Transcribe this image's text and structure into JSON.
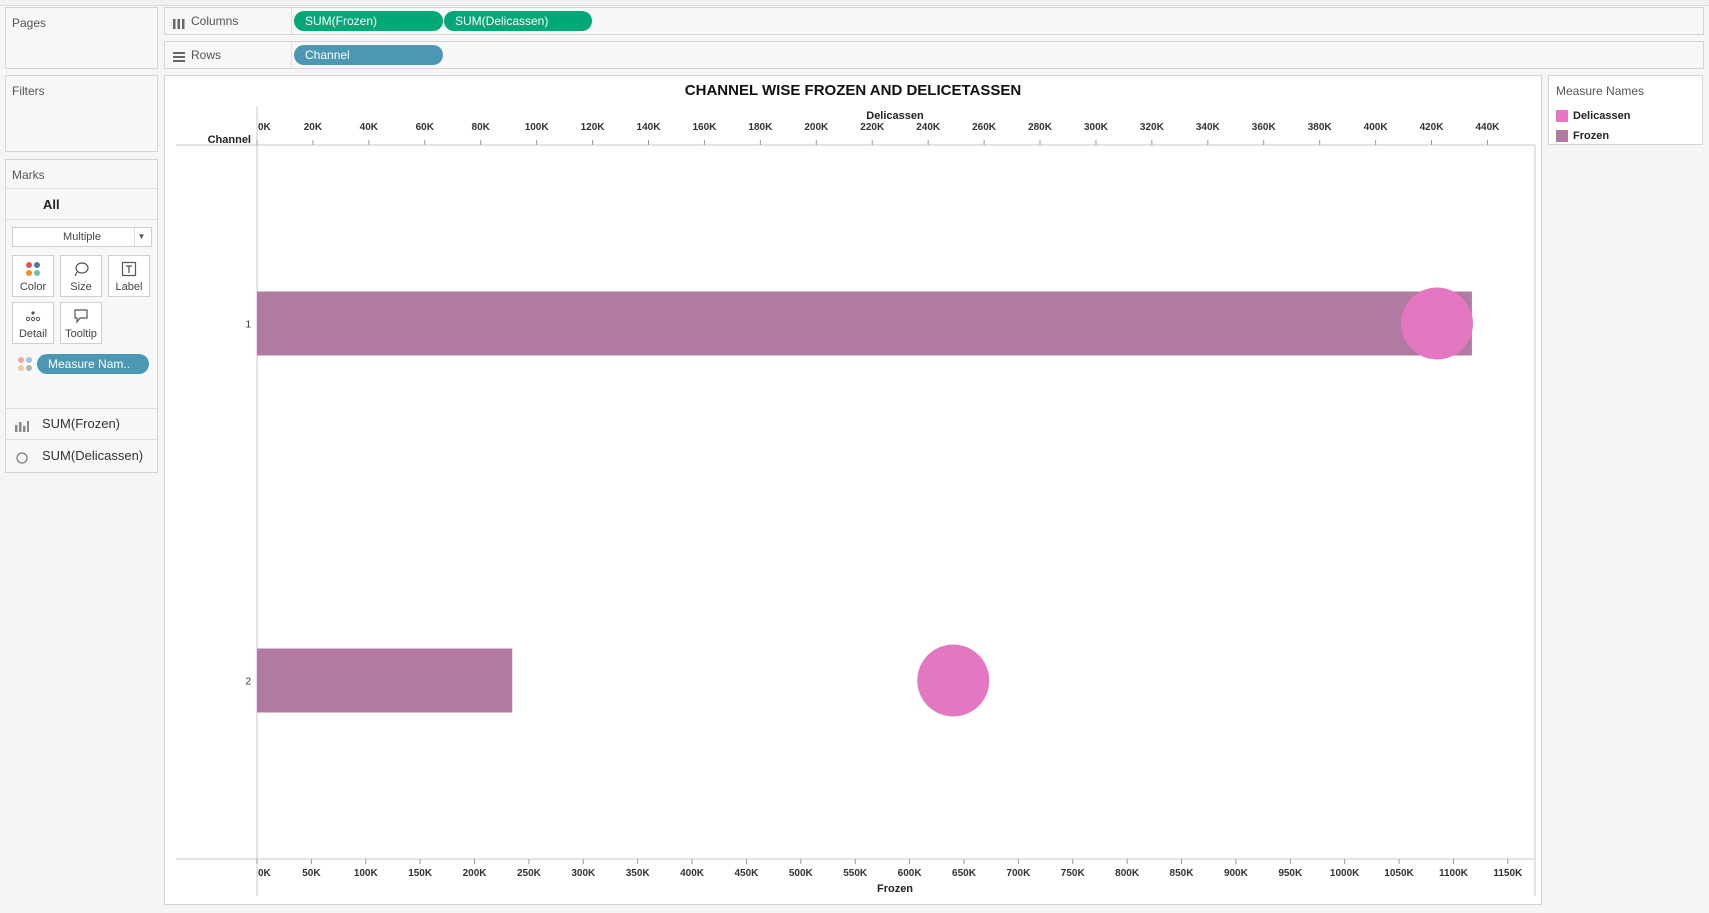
{
  "pages_pane": {
    "title": "Pages"
  },
  "filters_pane": {
    "title": "Filters"
  },
  "marks_pane": {
    "title": "Marks",
    "all_label": "All",
    "mark_type": "Multiple",
    "cards": [
      {
        "label": "Color",
        "icon": "color-dots-icon"
      },
      {
        "label": "Size",
        "icon": "size-lasso-icon"
      },
      {
        "label": "Label",
        "icon": "label-text-icon"
      },
      {
        "label": "Detail",
        "icon": "detail-dots-icon"
      },
      {
        "label": "Tooltip",
        "icon": "tooltip-bubble-icon"
      }
    ],
    "color_pill": "Measure Nam..",
    "measures": [
      {
        "label": "SUM(Frozen)",
        "icon": "bar-chart-icon"
      },
      {
        "label": "SUM(Delicassen)",
        "icon": "circle-icon"
      }
    ]
  },
  "shelves": {
    "columns": {
      "label": "Columns",
      "pills": [
        "SUM(Frozen)",
        "SUM(Delicassen)"
      ]
    },
    "rows": {
      "label": "Rows",
      "pills": [
        "Channel"
      ]
    }
  },
  "legend": {
    "title": "Measure Names",
    "items": [
      {
        "label": "Delicassen",
        "color": "#e377c2"
      },
      {
        "label": "Frozen",
        "color": "#b07aa1"
      }
    ]
  },
  "chart_data": {
    "type": "bar",
    "title": "CHANNEL WISE FROZEN AND DELICETASSEN",
    "row_header": "Channel",
    "categories": [
      "1",
      "2"
    ],
    "frozen_axis": {
      "label": "Frozen",
      "ticks": [
        "0K",
        "50K",
        "100K",
        "150K",
        "200K",
        "250K",
        "300K",
        "350K",
        "400K",
        "450K",
        "500K",
        "550K",
        "600K",
        "650K",
        "700K",
        "750K",
        "800K",
        "850K",
        "900K",
        "950K",
        "1000K",
        "1050K",
        "1100K",
        "1150K"
      ],
      "range": [
        0,
        1175000
      ]
    },
    "delicassen_axis": {
      "label": "Delicassen",
      "ticks": [
        "0K",
        "20K",
        "40K",
        "60K",
        "80K",
        "100K",
        "120K",
        "140K",
        "160K",
        "180K",
        "200K",
        "220K",
        "240K",
        "260K",
        "280K",
        "300K",
        "320K",
        "340K",
        "360K",
        "380K",
        "400K",
        "420K",
        "440K"
      ],
      "range": [
        0,
        457000
      ]
    },
    "series": [
      {
        "name": "Frozen",
        "mark": "bar",
        "color": "#b07aa1",
        "values": [
          1116979,
          234671
        ]
      },
      {
        "name": "Delicassen",
        "mark": "circle",
        "color": "#e377c2",
        "values": [
          421955,
          248988
        ]
      }
    ],
    "grid": false,
    "legend_position": "right"
  }
}
